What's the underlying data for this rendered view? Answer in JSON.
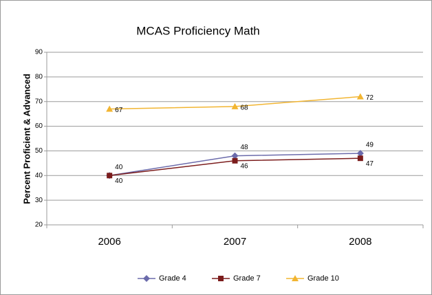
{
  "chart_data": {
    "type": "line",
    "title": "MCAS Proficiency Math",
    "y_label": "Percent Proficient & Advanced",
    "categories": [
      "2006",
      "2007",
      "2008"
    ],
    "series": [
      {
        "name": "Grade 4",
        "color": "#6b6bab",
        "values": [
          40,
          48,
          49
        ]
      },
      {
        "name": "Grade 7",
        "color": "#7b1c1c",
        "values": [
          40,
          46,
          47
        ]
      },
      {
        "name": "Grade 10",
        "color": "#f2b531",
        "values": [
          67,
          68,
          72
        ]
      }
    ],
    "ylim": [
      20,
      90
    ],
    "yticks": [
      20,
      30,
      40,
      50,
      60,
      70,
      80,
      90
    ],
    "grid": true,
    "legend": "bottom"
  }
}
